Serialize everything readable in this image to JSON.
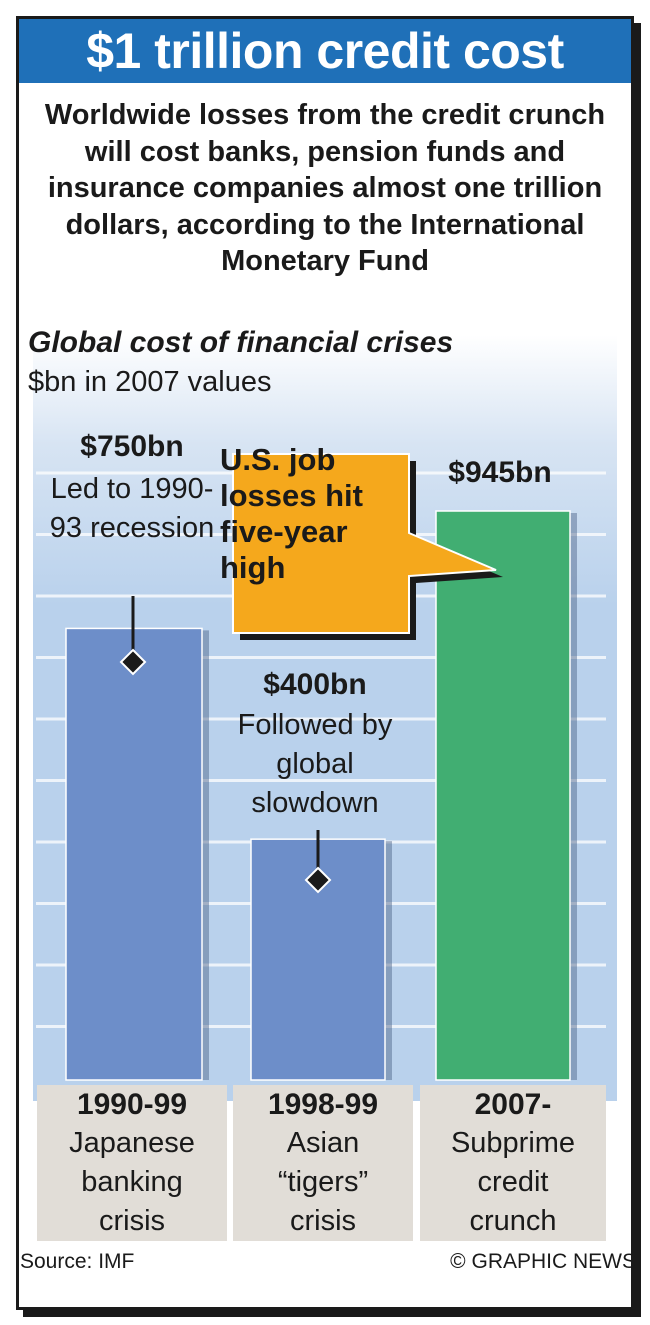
{
  "title": "$1 trillion credit cost",
  "subtitle": "Worldwide losses from the credit crunch will cost banks, pension funds and insurance companies almost one trillion dollars, according to the International Monetary Fund",
  "callout": "U.S. job losses hit five-year high",
  "source": "Source: IMF",
  "credit": "© GRAPHIC NEWS",
  "colors": {
    "title_bar": "#1f70b8",
    "bar_blue": "#6d8ec9",
    "bar_green": "#41ae72",
    "callout": "#f5a81c",
    "category_bg": "#e1ddd7"
  },
  "chart_data": {
    "type": "bar",
    "title": "Global cost of financial crises",
    "ylabel": "$bn in 2007 values",
    "categories": [
      {
        "year": "1990-99",
        "name": "Japanese banking crisis"
      },
      {
        "year": "1998-99",
        "name": "Asian “tigers” crisis"
      },
      {
        "year": "2007-",
        "name": "Subprime credit crunch"
      }
    ],
    "values": [
      750,
      400,
      945
    ],
    "value_labels": [
      "$750bn",
      "$400bn",
      "$945bn"
    ],
    "annotations": [
      "Led to 1990-93 recession",
      "Followed by global slowdown",
      ""
    ],
    "ylim": [
      0,
      945
    ]
  }
}
